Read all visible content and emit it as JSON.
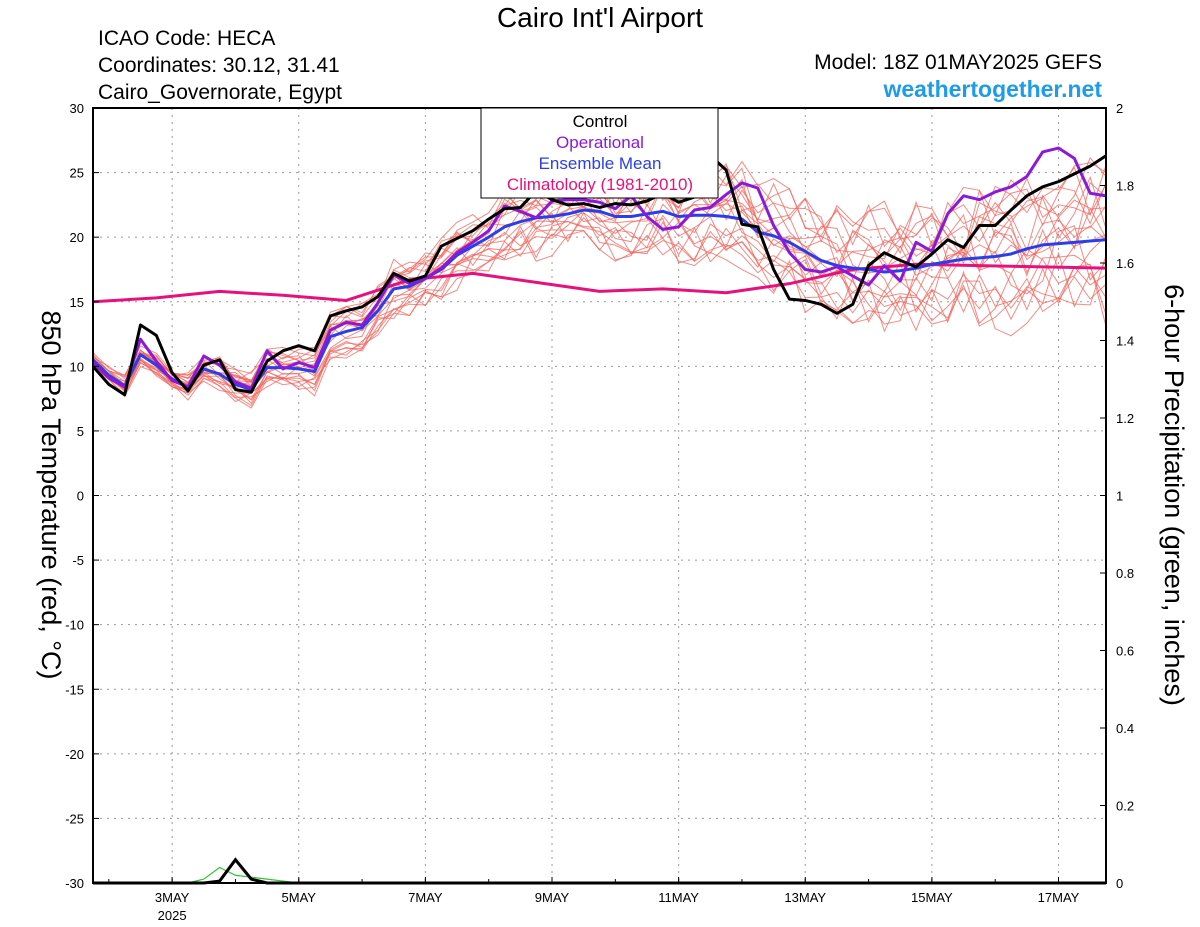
{
  "header": {
    "title": "Cairo Int'l Airport",
    "icao": "ICAO Code: HECA",
    "coordinates": "Coordinates: 30.12, 31.41",
    "location": "Cairo_Governorate, Egypt",
    "model": "Model: 18Z 01MAY2025 GEFS",
    "brand": "weathertogether.net"
  },
  "chart_data": {
    "type": "line",
    "ylabel": "850 hPa Temperature (red, °C)",
    "y2label": "6-hour Precipitation (green, inches)",
    "x_unit": "days since 00Z 01MAY2025 (axis shows dates)",
    "xlim": [
      1.75,
      17.75
    ],
    "ylim": [
      -30,
      30
    ],
    "y2lim": [
      0,
      2
    ],
    "yticks": [
      "30",
      "25",
      "20",
      "15",
      "10",
      "5",
      "0",
      "-5",
      "-10",
      "-15",
      "-20",
      "-25",
      "-30"
    ],
    "y2ticks": [
      "2",
      "1.8",
      "1.6",
      "1.4",
      "1.2",
      "1",
      "0.8",
      "0.6",
      "0.4",
      "0.2",
      "0"
    ],
    "xticks": [
      {
        "label": "3MAY",
        "x": 3
      },
      {
        "label": "5MAY",
        "x": 5
      },
      {
        "label": "7MAY",
        "x": 7
      },
      {
        "label": "9MAY",
        "x": 9
      },
      {
        "label": "11MAY",
        "x": 11
      },
      {
        "label": "13MAY",
        "x": 13
      },
      {
        "label": "15MAY",
        "x": 15
      },
      {
        "label": "17MAY",
        "x": 17
      }
    ],
    "year_label": "2025",
    "grid": true,
    "legend": {
      "position": "top-center",
      "items": [
        {
          "label": "Control",
          "color": "#000000"
        },
        {
          "label": "Operational",
          "color": "#8a19d8"
        },
        {
          "label": "Ensemble Mean",
          "color": "#2b3ee8"
        },
        {
          "label": "Climatology (1981-2010)",
          "color": "#e5127e"
        }
      ]
    },
    "series": [
      {
        "name": "Control",
        "color": "#000000",
        "width": 3,
        "x": [
          1.75,
          2.0,
          2.25,
          2.5,
          2.75,
          3.0,
          3.25,
          3.5,
          3.75,
          4.0,
          4.25,
          4.5,
          4.75,
          5.0,
          5.25,
          5.5,
          5.75,
          6.0,
          6.25,
          6.5,
          6.75,
          7.0,
          7.25,
          7.5,
          7.75,
          8.0,
          8.25,
          8.5,
          8.75,
          9.0,
          9.25,
          9.5,
          9.75,
          10.0,
          10.25,
          10.5,
          10.75,
          11.0,
          11.25,
          11.5,
          11.75,
          12.0,
          12.25,
          12.5,
          12.75,
          13.0,
          13.25,
          13.5,
          13.75,
          14.0,
          14.25,
          14.5,
          14.75,
          15.0,
          15.25,
          15.5,
          15.75,
          16.0,
          16.25,
          16.5,
          16.75,
          17.0,
          17.25,
          17.5,
          17.75
        ],
        "y": [
          10,
          8.6,
          7.8,
          13.2,
          12.4,
          9.5,
          8.1,
          10.1,
          10.5,
          8.2,
          8,
          10.4,
          11.2,
          11.6,
          11.2,
          13.9,
          14.3,
          14.6,
          15.4,
          17.2,
          16.6,
          17,
          19.3,
          19.9,
          20.5,
          21.4,
          22.2,
          22.3,
          23.6,
          22.9,
          22.5,
          22.6,
          22.3,
          22.6,
          22.5,
          22.8,
          23.4,
          22.7,
          23.1,
          26.3,
          25.2,
          21,
          20.8,
          17.5,
          15.2,
          15.1,
          14.8,
          14.1,
          14.8,
          17.8,
          18.8,
          18.2,
          17.7,
          18.7,
          19.8,
          19.2,
          20.9,
          20.9,
          22.1,
          23.2,
          23.9,
          24.3,
          24.9,
          25.5,
          26.3
        ]
      },
      {
        "name": "Operational",
        "color": "#8a19d8",
        "width": 3,
        "x": [
          1.75,
          2.0,
          2.25,
          2.5,
          2.75,
          3.0,
          3.25,
          3.5,
          3.75,
          4.0,
          4.25,
          4.5,
          4.75,
          5.0,
          5.25,
          5.5,
          5.75,
          6.0,
          6.25,
          6.5,
          6.75,
          7.0,
          7.25,
          7.5,
          7.75,
          8.0,
          8.25,
          8.5,
          8.75,
          9.0,
          9.25,
          9.5,
          9.75,
          10.0,
          10.25,
          10.5,
          10.75,
          11.0,
          11.25,
          11.5,
          11.75,
          12.0,
          12.25,
          12.5,
          12.75,
          13.0,
          13.25,
          13.5,
          13.75,
          14.0,
          14.25,
          14.5,
          14.75,
          15.0,
          15.25,
          15.5,
          15.75,
          16.0,
          16.25,
          16.5,
          16.75,
          17.0,
          17.25,
          17.5,
          17.75
        ],
        "y": [
          10.3,
          9.1,
          8.4,
          12.1,
          10.4,
          8.9,
          8.4,
          10.8,
          10.1,
          8.8,
          8.3,
          11.2,
          9.8,
          10.3,
          9.9,
          12.8,
          13.4,
          13.2,
          14.9,
          17.1,
          16.4,
          16.8,
          17.6,
          18.8,
          19.6,
          20.5,
          22.4,
          22,
          21.5,
          22.8,
          22.9,
          22.9,
          22.7,
          22.2,
          23.2,
          21.6,
          20.6,
          20.8,
          22.1,
          22.3,
          23.3,
          24.2,
          23.8,
          20.9,
          18.8,
          17.5,
          17.3,
          17.7,
          17,
          16.3,
          17.8,
          16.6,
          19.6,
          18.9,
          21.8,
          23.2,
          22.9,
          23.5,
          23.9,
          24.7,
          26.6,
          26.9,
          26.1,
          23.4,
          23.2
        ]
      },
      {
        "name": "Ensemble Mean",
        "color": "#2b3ee8",
        "width": 3,
        "x": [
          1.75,
          2.0,
          2.25,
          2.5,
          2.75,
          3.0,
          3.25,
          3.5,
          3.75,
          4.0,
          4.25,
          4.5,
          4.75,
          5.0,
          5.25,
          5.5,
          5.75,
          6.0,
          6.25,
          6.5,
          6.75,
          7.0,
          7.25,
          7.5,
          7.75,
          8.0,
          8.25,
          8.5,
          8.75,
          9.0,
          9.25,
          9.5,
          9.75,
          10.0,
          10.25,
          10.5,
          10.75,
          11.0,
          11.25,
          11.5,
          11.75,
          12.0,
          12.25,
          12.5,
          12.75,
          13.0,
          13.25,
          13.5,
          13.75,
          14.0,
          14.25,
          14.5,
          14.75,
          15.0,
          15.25,
          15.5,
          15.75,
          16.0,
          16.25,
          16.5,
          16.75,
          17.0,
          17.25,
          17.5,
          17.75
        ],
        "y": [
          10.5,
          9.3,
          8.5,
          10.9,
          10.1,
          9,
          8.4,
          9.8,
          9.4,
          8.6,
          8.2,
          9.9,
          9.9,
          9.8,
          9.6,
          12.3,
          12.7,
          13,
          14.3,
          16,
          16.2,
          16.8,
          17.5,
          18.6,
          19.3,
          20,
          20.8,
          21.2,
          21.5,
          21.6,
          21.8,
          22.1,
          22,
          21.6,
          21.6,
          21.8,
          22,
          21.6,
          21.7,
          21.7,
          21.6,
          21.4,
          20.4,
          20.1,
          19.6,
          18.9,
          18.2,
          17.8,
          17.6,
          17.5,
          17.3,
          17.4,
          17.6,
          17.9,
          18.1,
          18.3,
          18.4,
          18.5,
          18.7,
          19.1,
          19.4,
          19.5,
          19.6,
          19.7,
          19.8
        ]
      },
      {
        "name": "Climatology (1981-2010)",
        "color": "#e5127e",
        "width": 3,
        "x": [
          1.75,
          2.75,
          3.75,
          4.75,
          5.75,
          6.75,
          7.75,
          8.75,
          9.75,
          10.75,
          11.75,
          12.75,
          13.75,
          14.75,
          15.75,
          16.75,
          17.75
        ],
        "y": [
          15,
          15.3,
          15.8,
          15.5,
          15.1,
          16.7,
          17.2,
          16.5,
          15.8,
          16,
          15.7,
          16.4,
          17.5,
          17.9,
          17.8,
          17.7,
          17.6
        ]
      }
    ],
    "precipitation_series": [
      {
        "name": "Control precipitation",
        "color": "#000000",
        "x": [
          1.75,
          3.25,
          3.5,
          3.75,
          4.0,
          4.25,
          4.5,
          4.75,
          17.75
        ],
        "y": [
          0,
          0,
          0,
          0.005,
          0.06,
          0.01,
          0,
          0,
          0
        ]
      },
      {
        "name": "Member precipitation",
        "color": "#35c42f",
        "x": [
          3.25,
          3.5,
          3.75,
          4.0,
          4.25,
          4.5,
          4.75,
          5.0
        ],
        "y": [
          0,
          0.01,
          0.04,
          0.02,
          0.015,
          0.01,
          0.005,
          0
        ]
      }
    ]
  }
}
